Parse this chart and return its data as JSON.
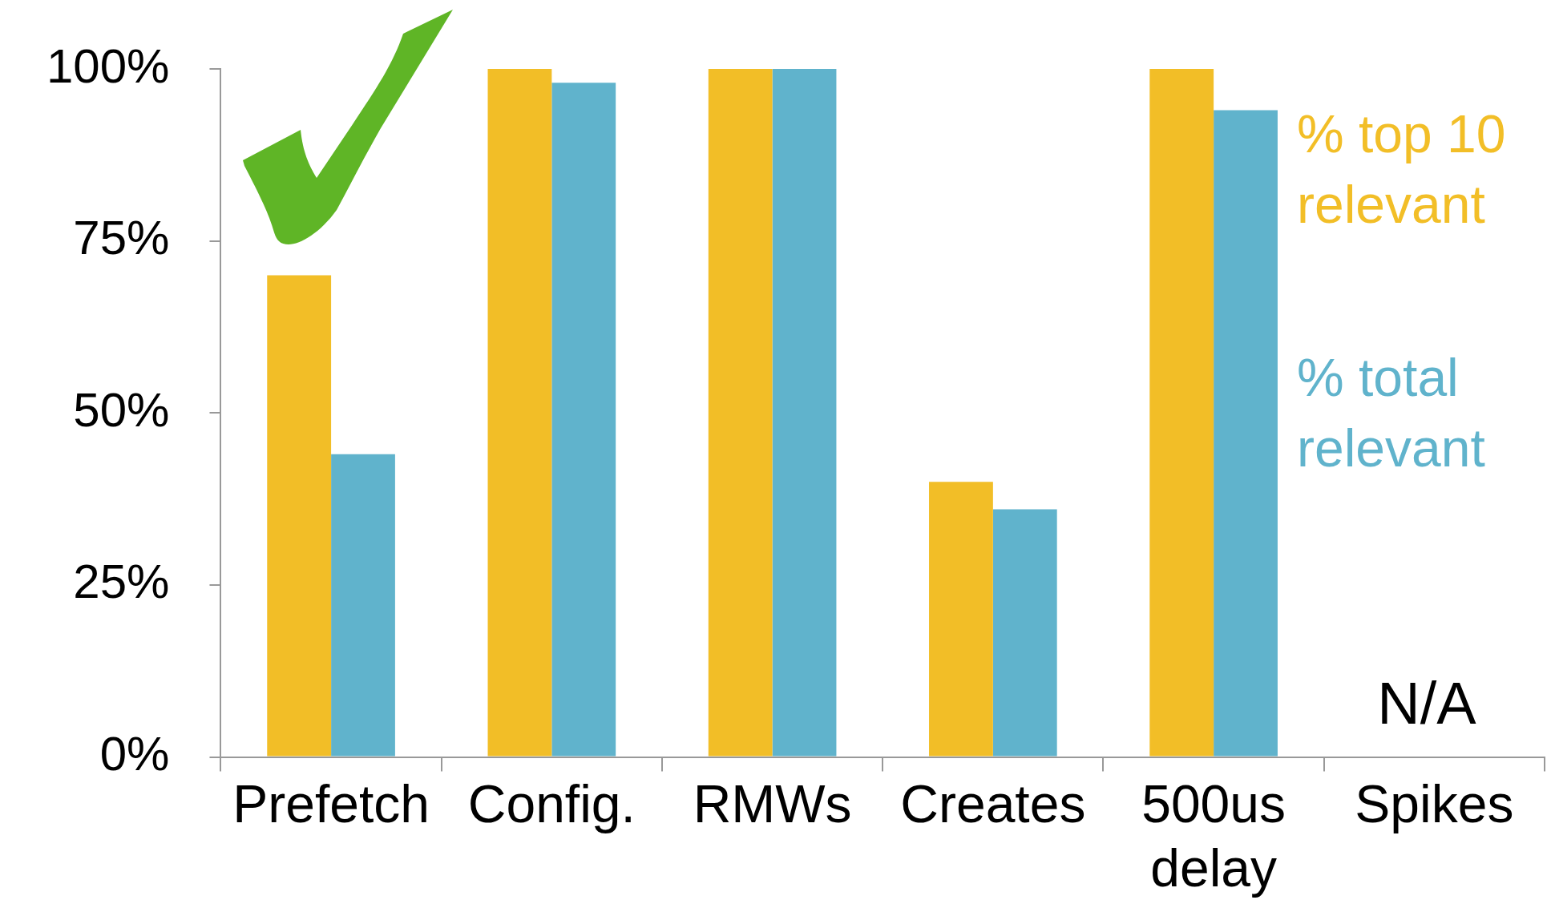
{
  "chart_data": {
    "type": "bar",
    "categories": [
      "Prefetch",
      "Config.",
      "RMWs",
      "Creates",
      "500us\ndelay",
      "Spikes"
    ],
    "series": [
      {
        "name": "% top 10 relevant",
        "color": "#f2be27",
        "values": [
          70,
          100,
          100,
          40,
          100,
          null
        ]
      },
      {
        "name": "% total relevant",
        "color": "#60b3cc",
        "values": [
          44,
          98,
          100,
          36,
          94,
          null
        ]
      }
    ],
    "ylim": [
      0,
      100
    ],
    "yticks": [
      {
        "value": 0,
        "label": "0%"
      },
      {
        "value": 25,
        "label": "25%"
      },
      {
        "value": 50,
        "label": "50%"
      },
      {
        "value": 75,
        "label": "75%"
      },
      {
        "value": 100,
        "label": "100%"
      }
    ],
    "annotations": [
      "N/A"
    ],
    "legend": "right",
    "grid": false
  }
}
